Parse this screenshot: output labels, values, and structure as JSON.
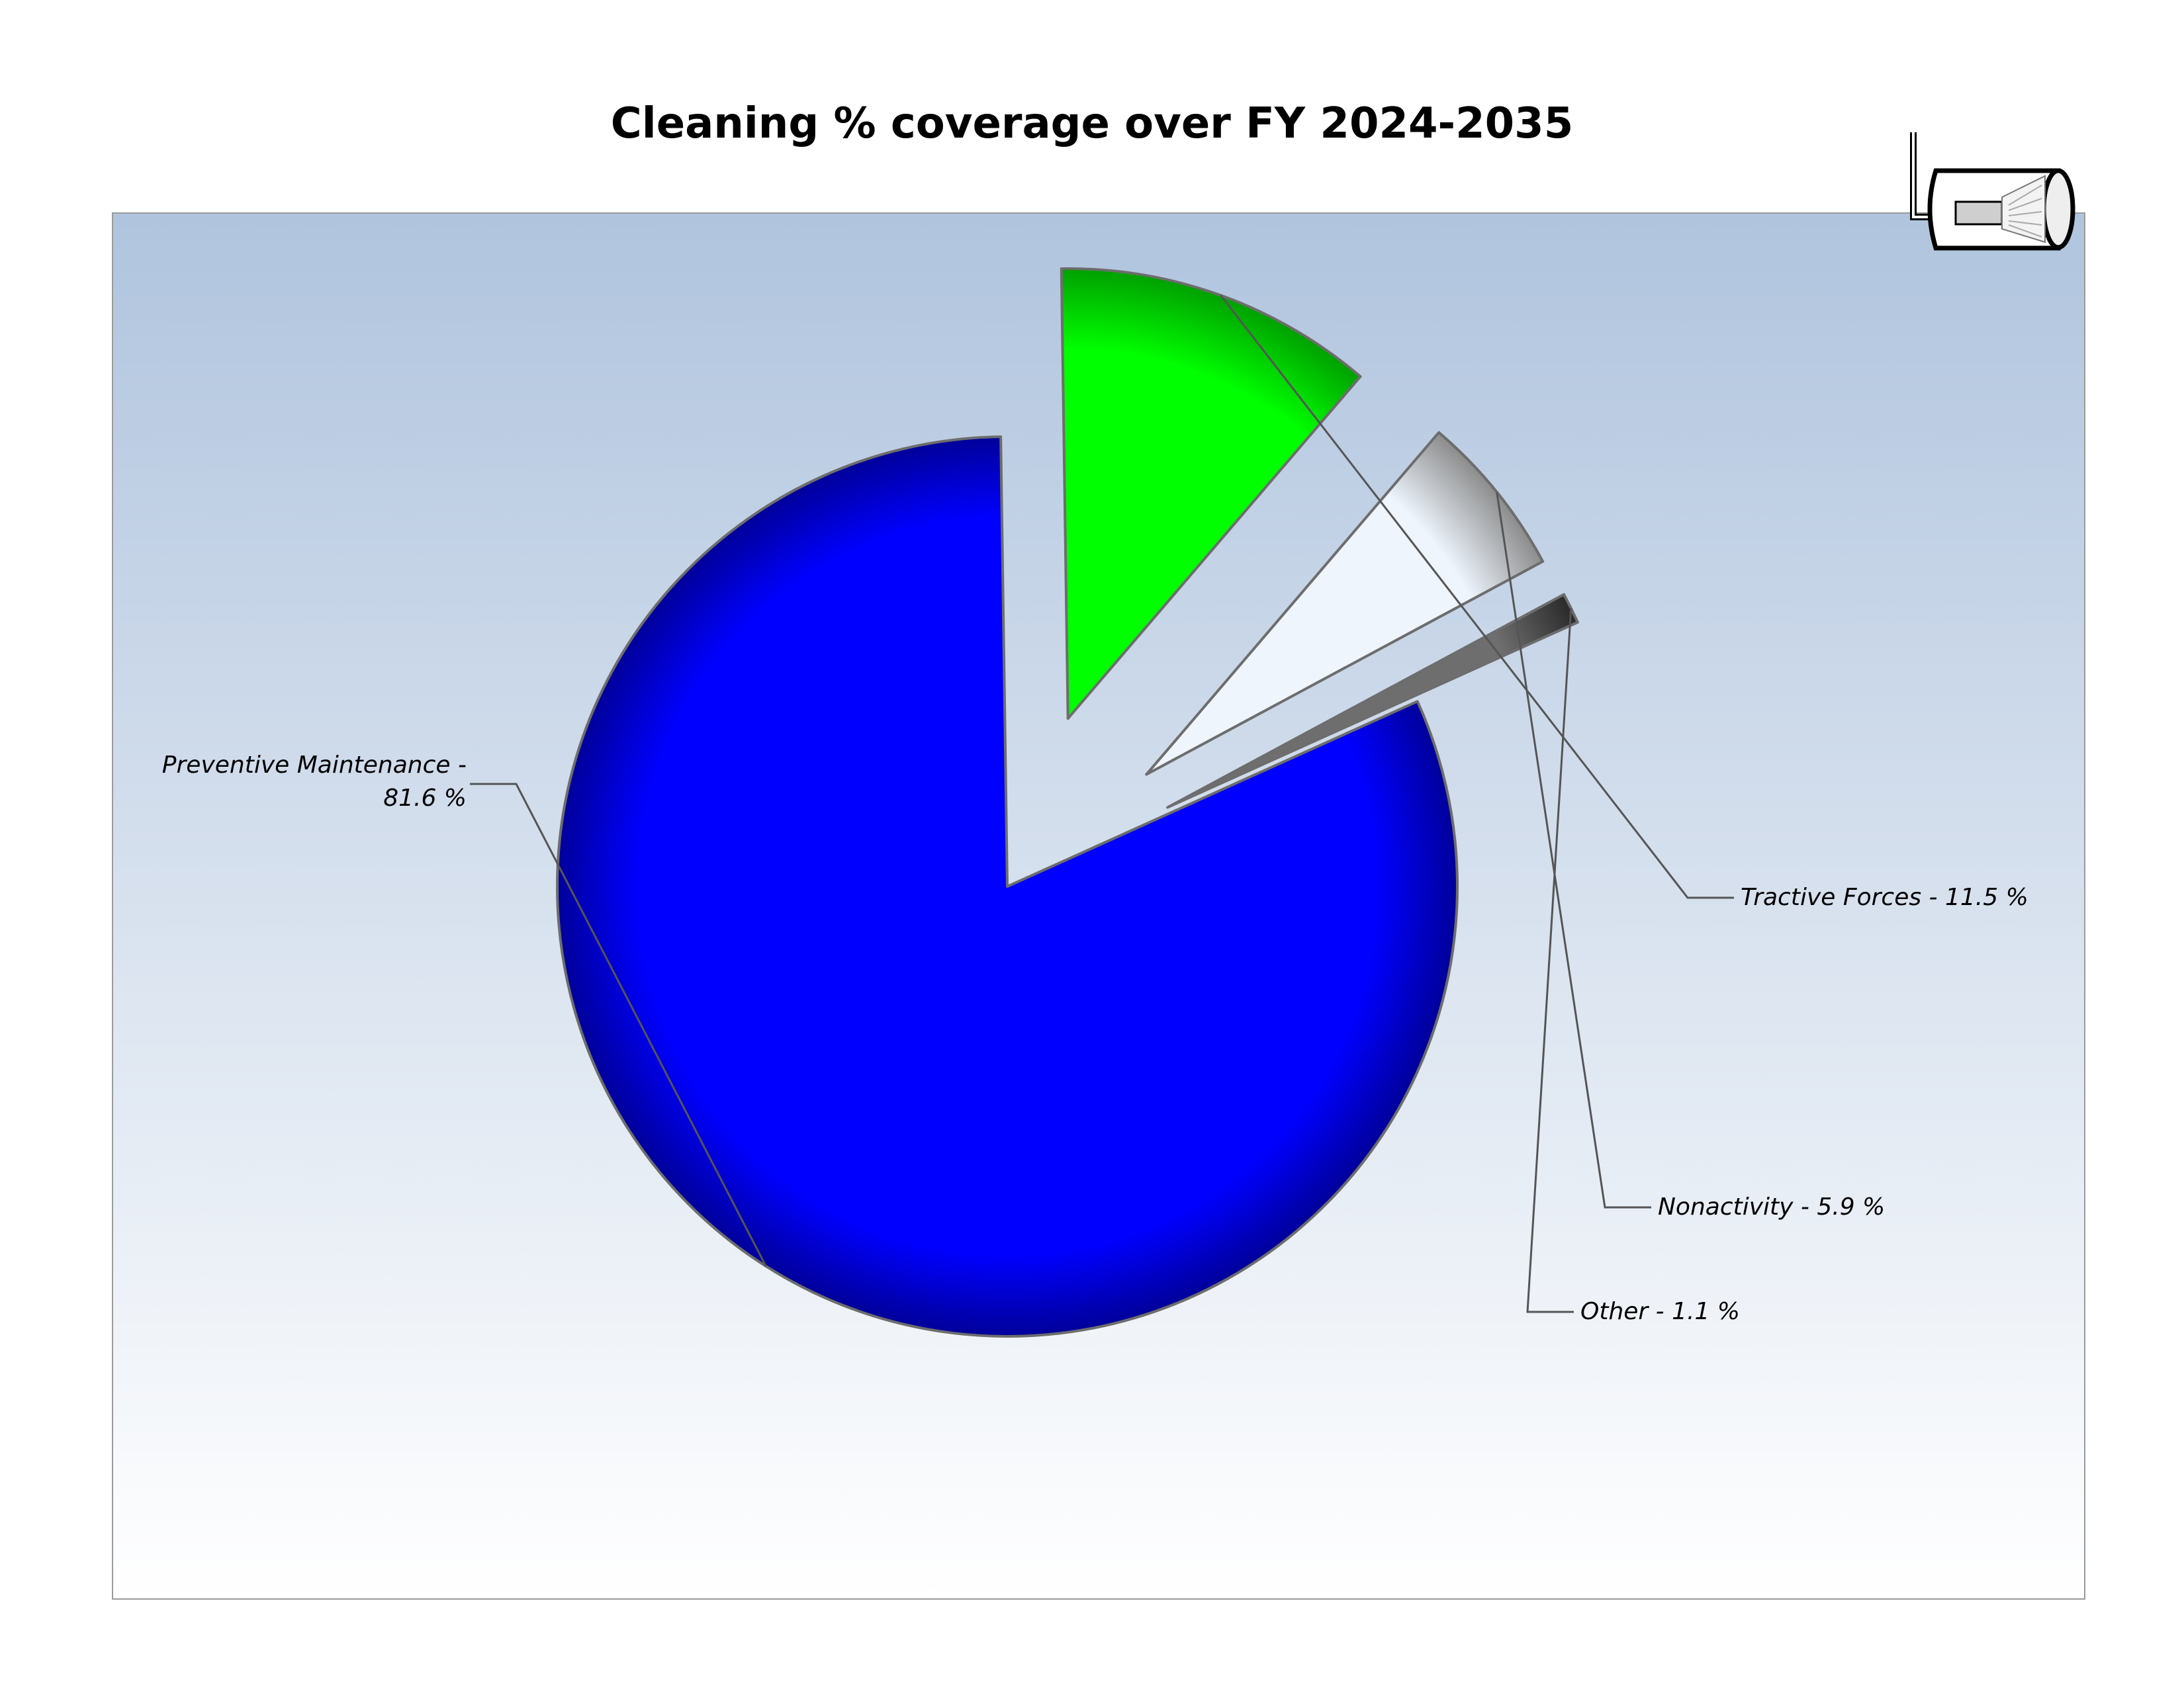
{
  "chart_data": {
    "type": "pie",
    "title": "Cleaning % coverage over FY 2024-2035",
    "slices": [
      {
        "name": "Preventive Maintenance",
        "value": 81.6,
        "label_lines": [
          "Preventive Maintenance -",
          "81.6 %"
        ],
        "color": "#0000ff",
        "color_dark": "#00009a",
        "exploded": false
      },
      {
        "name": "Tractive Forces",
        "value": 11.5,
        "label_lines": [
          "Tractive Forces - 11.5 %"
        ],
        "color": "#00ff00",
        "color_dark": "#00a000",
        "exploded": true
      },
      {
        "name": "Nonactivity",
        "value": 5.9,
        "label_lines": [
          "Nonactivity - 5.9 %"
        ],
        "color": "#eef5fd",
        "color_dark": "#8c8c8c",
        "exploded": true
      },
      {
        "name": "Other",
        "value": 1.1,
        "label_lines": [
          "Other - 1.1 %"
        ],
        "color": "#6e6e6e",
        "color_dark": "#2a2a2a",
        "exploded": true
      }
    ],
    "legend": "none",
    "grid": false,
    "background": {
      "top": "#b0c4de",
      "bottom": "#ffffff"
    }
  },
  "logo": {
    "name": "pipe-cleaning-nozzle-icon"
  }
}
